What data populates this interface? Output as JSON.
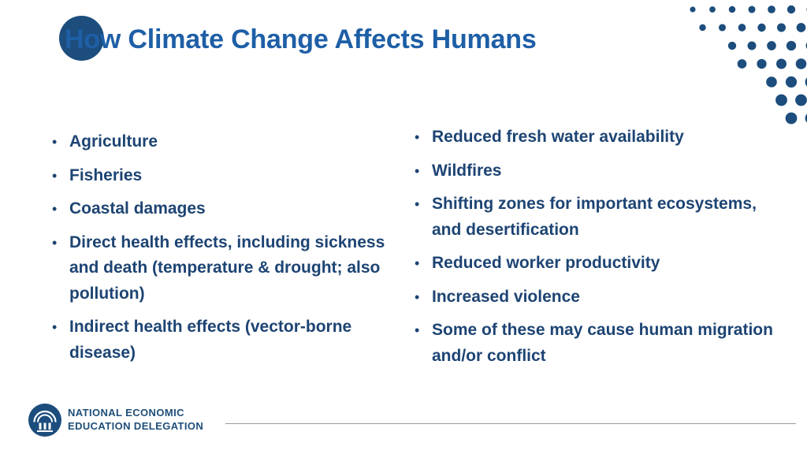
{
  "slide": {
    "title": "How Climate Change Affects Humans",
    "bullet_char": "•",
    "left_bullets": [
      "Agriculture",
      "Fisheries",
      "Coastal damages",
      "Direct health effects, including sickness and death (temperature & drought; also pollution)",
      "Indirect health effects (vector-borne disease)"
    ],
    "right_bullets": [
      "Reduced fresh water availability",
      "Wildfires",
      "Shifting zones for important ecosystems, and desertification",
      "Reduced worker productivity",
      "Increased violence",
      "Some of these may cause human migration and/or conflict"
    ]
  },
  "footer": {
    "org_line1": "NATIONAL ECONOMIC",
    "org_line2": "EDUCATION DELEGATION"
  },
  "colors": {
    "title_blue": "#1e5fa6",
    "body_navy": "#1d4473",
    "dot_blue": "#1c4d7d",
    "circle_navy": "#1c4d7d",
    "footer_navy": "#1f4e79",
    "rule_gray": "#9a9a9a"
  }
}
